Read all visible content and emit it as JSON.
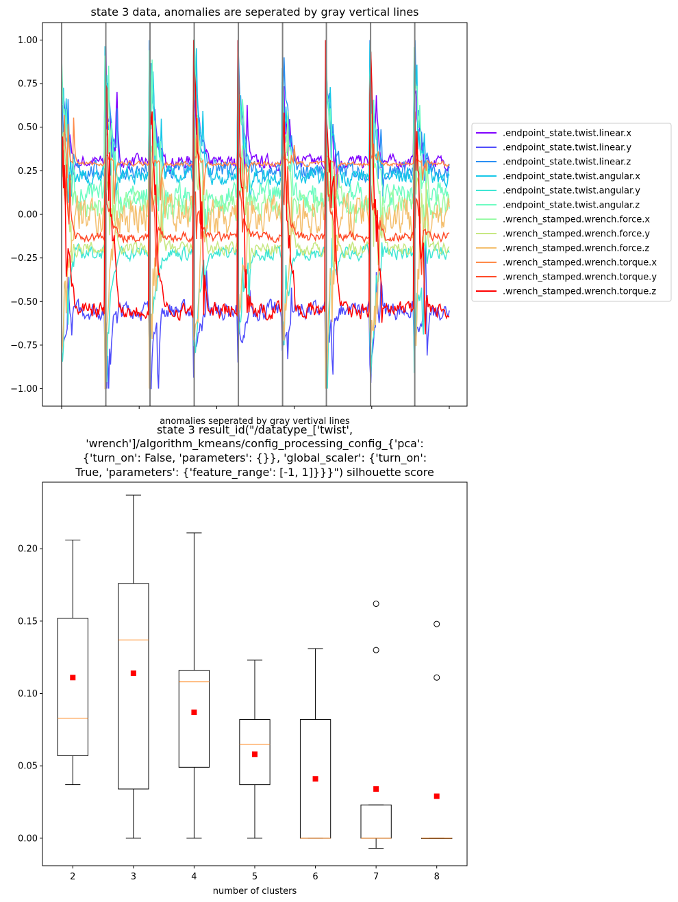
{
  "chart_data": [
    {
      "type": "line",
      "title": "state 3 data, anomalies are seperated by gray vertical lines",
      "xlabel": "anomalies seperated by gray vertival lines",
      "ylabel": "",
      "ylim": [
        -1.1,
        1.1
      ],
      "yticks": [
        -1.0,
        -0.75,
        -0.5,
        -0.25,
        0.0,
        0.25,
        0.5,
        0.75,
        1.0
      ],
      "ytick_labels": [
        "−1.00",
        "−0.75",
        "−0.50",
        "−0.25",
        "0.00",
        "0.25",
        "0.50",
        "0.75",
        "1.00"
      ],
      "xlim": [
        0,
        100
      ],
      "xtick_positions": [
        0,
        20,
        40,
        60,
        80,
        100
      ],
      "anomaly_boundaries": [
        0,
        11.4,
        22.8,
        34.2,
        45.6,
        57.0,
        68.3,
        79.7,
        91.1
      ],
      "legend_position": "outside-right",
      "series": [
        {
          "name": ".endpoint_state.twist.linear.x",
          "color": "#8000ff",
          "base": 0.3,
          "noise": 0.06,
          "spike": 0.84
        },
        {
          "name": ".endpoint_state.twist.linear.y",
          "color": "#4f4dfb",
          "base": -0.55,
          "noise": 0.08,
          "spike": -0.85
        },
        {
          "name": ".endpoint_state.twist.linear.z",
          "color": "#2a8ff3",
          "base": 0.25,
          "noise": 0.08,
          "spike": 1.0
        },
        {
          "name": ".endpoint_state.twist.angular.x",
          "color": "#16c7e8",
          "base": 0.22,
          "noise": 0.08,
          "spike": 0.9
        },
        {
          "name": ".endpoint_state.twist.angular.y",
          "color": "#3fe6d4",
          "base": -0.22,
          "noise": 0.06,
          "spike": -0.95
        },
        {
          "name": ".endpoint_state.twist.angular.z",
          "color": "#6efcc2",
          "base": 0.1,
          "noise": 0.12,
          "spike": 1.0
        },
        {
          "name": ".wrench_stamped.wrench.force.x",
          "color": "#99fba6",
          "base": 0.05,
          "noise": 0.12,
          "spike": 0.6
        },
        {
          "name": ".wrench_stamped.wrench.force.y",
          "color": "#c7e882",
          "base": -0.2,
          "noise": 0.06,
          "spike": 0.5
        },
        {
          "name": ".wrench_stamped.wrench.force.z",
          "color": "#f4bf6e",
          "base": 0.0,
          "noise": 0.18,
          "spike": -1.0
        },
        {
          "name": ".wrench_stamped.wrench.torque.x",
          "color": "#ff8a48",
          "base": 0.29,
          "noise": 0.02,
          "spike": 0.35
        },
        {
          "name": ".wrench_stamped.wrench.torque.y",
          "color": "#ff4a28",
          "base": -0.13,
          "noise": 0.04,
          "spike": 0.2
        },
        {
          "name": ".wrench_stamped.wrench.torque.z",
          "color": "#ff0000",
          "base": -0.55,
          "noise": 0.07,
          "spike": 1.0
        }
      ]
    },
    {
      "type": "box",
      "title_lines": [
        "state 3 result_id(\"/datatype_['twist',",
        "'wrench']/algorithm_kmeans/config_processing_config_{'pca':",
        "{'turn_on': False, 'parameters': {}}, 'global_scaler': {'turn_on':",
        "True, 'parameters': {'feature_range': [-1, 1]}}}\") silhouette score"
      ],
      "xlabel": "number of clusters",
      "ylabel": "",
      "ylim": [
        -0.019,
        0.246
      ],
      "yticks": [
        0.0,
        0.05,
        0.1,
        0.15,
        0.2
      ],
      "ytick_labels": [
        "0.00",
        "0.05",
        "0.10",
        "0.15",
        "0.20"
      ],
      "categories": [
        "2",
        "3",
        "4",
        "5",
        "6",
        "7",
        "8"
      ],
      "boxes": [
        {
          "whislo": 0.037,
          "q1": 0.057,
          "med": 0.083,
          "q3": 0.152,
          "whishi": 0.206,
          "mean": 0.111,
          "fliers": []
        },
        {
          "whislo": 0.0,
          "q1": 0.034,
          "med": 0.137,
          "q3": 0.176,
          "whishi": 0.237,
          "mean": 0.114,
          "fliers": []
        },
        {
          "whislo": 0.0,
          "q1": 0.049,
          "med": 0.108,
          "q3": 0.116,
          "whishi": 0.211,
          "mean": 0.087,
          "fliers": []
        },
        {
          "whislo": 0.0,
          "q1": 0.037,
          "med": 0.065,
          "q3": 0.082,
          "whishi": 0.123,
          "mean": 0.058,
          "fliers": []
        },
        {
          "whislo": 0.0,
          "q1": 0.0,
          "med": 0.0,
          "q3": 0.082,
          "whishi": 0.131,
          "mean": 0.041,
          "fliers": []
        },
        {
          "whislo": -0.007,
          "q1": 0.0,
          "med": 0.0,
          "q3": 0.023,
          "whishi": 0.023,
          "mean": 0.034,
          "fliers": [
            0.13,
            0.162
          ]
        },
        {
          "whislo": 0.0,
          "q1": 0.0,
          "med": 0.0,
          "q3": 0.0,
          "whishi": 0.0,
          "mean": 0.029,
          "fliers": [
            0.111,
            0.148
          ]
        }
      ],
      "box_color": "#000000",
      "median_color": "#ff7f0e",
      "mean_color": "#ff0000"
    }
  ]
}
